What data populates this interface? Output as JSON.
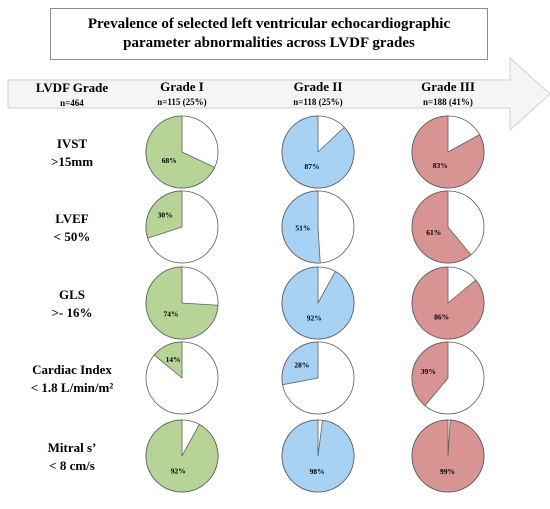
{
  "title_lines": [
    "Prevalence of selected left ventricular  echocardiographic",
    "parameter abnormalities across LVDF grades"
  ],
  "header": {
    "label": "LVDF Grade",
    "n": "n=464"
  },
  "colors": {
    "grade_1": "#b6d495",
    "grade_2": "#a7d2f3",
    "grade_3": "#d89393",
    "remainder": "#ffffff",
    "stroke": "#5f5f5f",
    "arrow_fill": "#f5f5f5"
  },
  "chart_data": {
    "type": "pie",
    "grades": [
      {
        "name": "Grade I",
        "n": "n=115 (25%)",
        "color": "#b6d495"
      },
      {
        "name": "Grade II",
        "n": "n=118 (25%)",
        "color": "#a7d2f3"
      },
      {
        "name": "Grade III",
        "n": "n=188 (41%)",
        "color": "#d89393"
      }
    ],
    "parameters": [
      {
        "label_lines": [
          "IVST",
          ">15mm"
        ],
        "values": [
          68,
          87,
          83
        ],
        "labels": [
          "68%",
          "87%",
          "83%"
        ]
      },
      {
        "label_lines": [
          "LVEF",
          "< 50%"
        ],
        "values": [
          30,
          51,
          61
        ],
        "labels": [
          "30%",
          "51%",
          "61%"
        ]
      },
      {
        "label_lines": [
          "GLS",
          ">- 16%"
        ],
        "values": [
          74,
          92,
          86
        ],
        "labels": [
          "74%",
          "92%",
          "86%"
        ]
      },
      {
        "label_lines": [
          "Cardiac Index",
          "< 1.8 L/min/m²"
        ],
        "values": [
          14,
          28,
          39
        ],
        "labels": [
          "14%",
          "28%",
          "39%"
        ]
      },
      {
        "label_lines": [
          "Mitral s’",
          "< 8 cm/s"
        ],
        "values": [
          92,
          98,
          99
        ],
        "labels": [
          "92%",
          "98%",
          "99%"
        ]
      }
    ]
  }
}
